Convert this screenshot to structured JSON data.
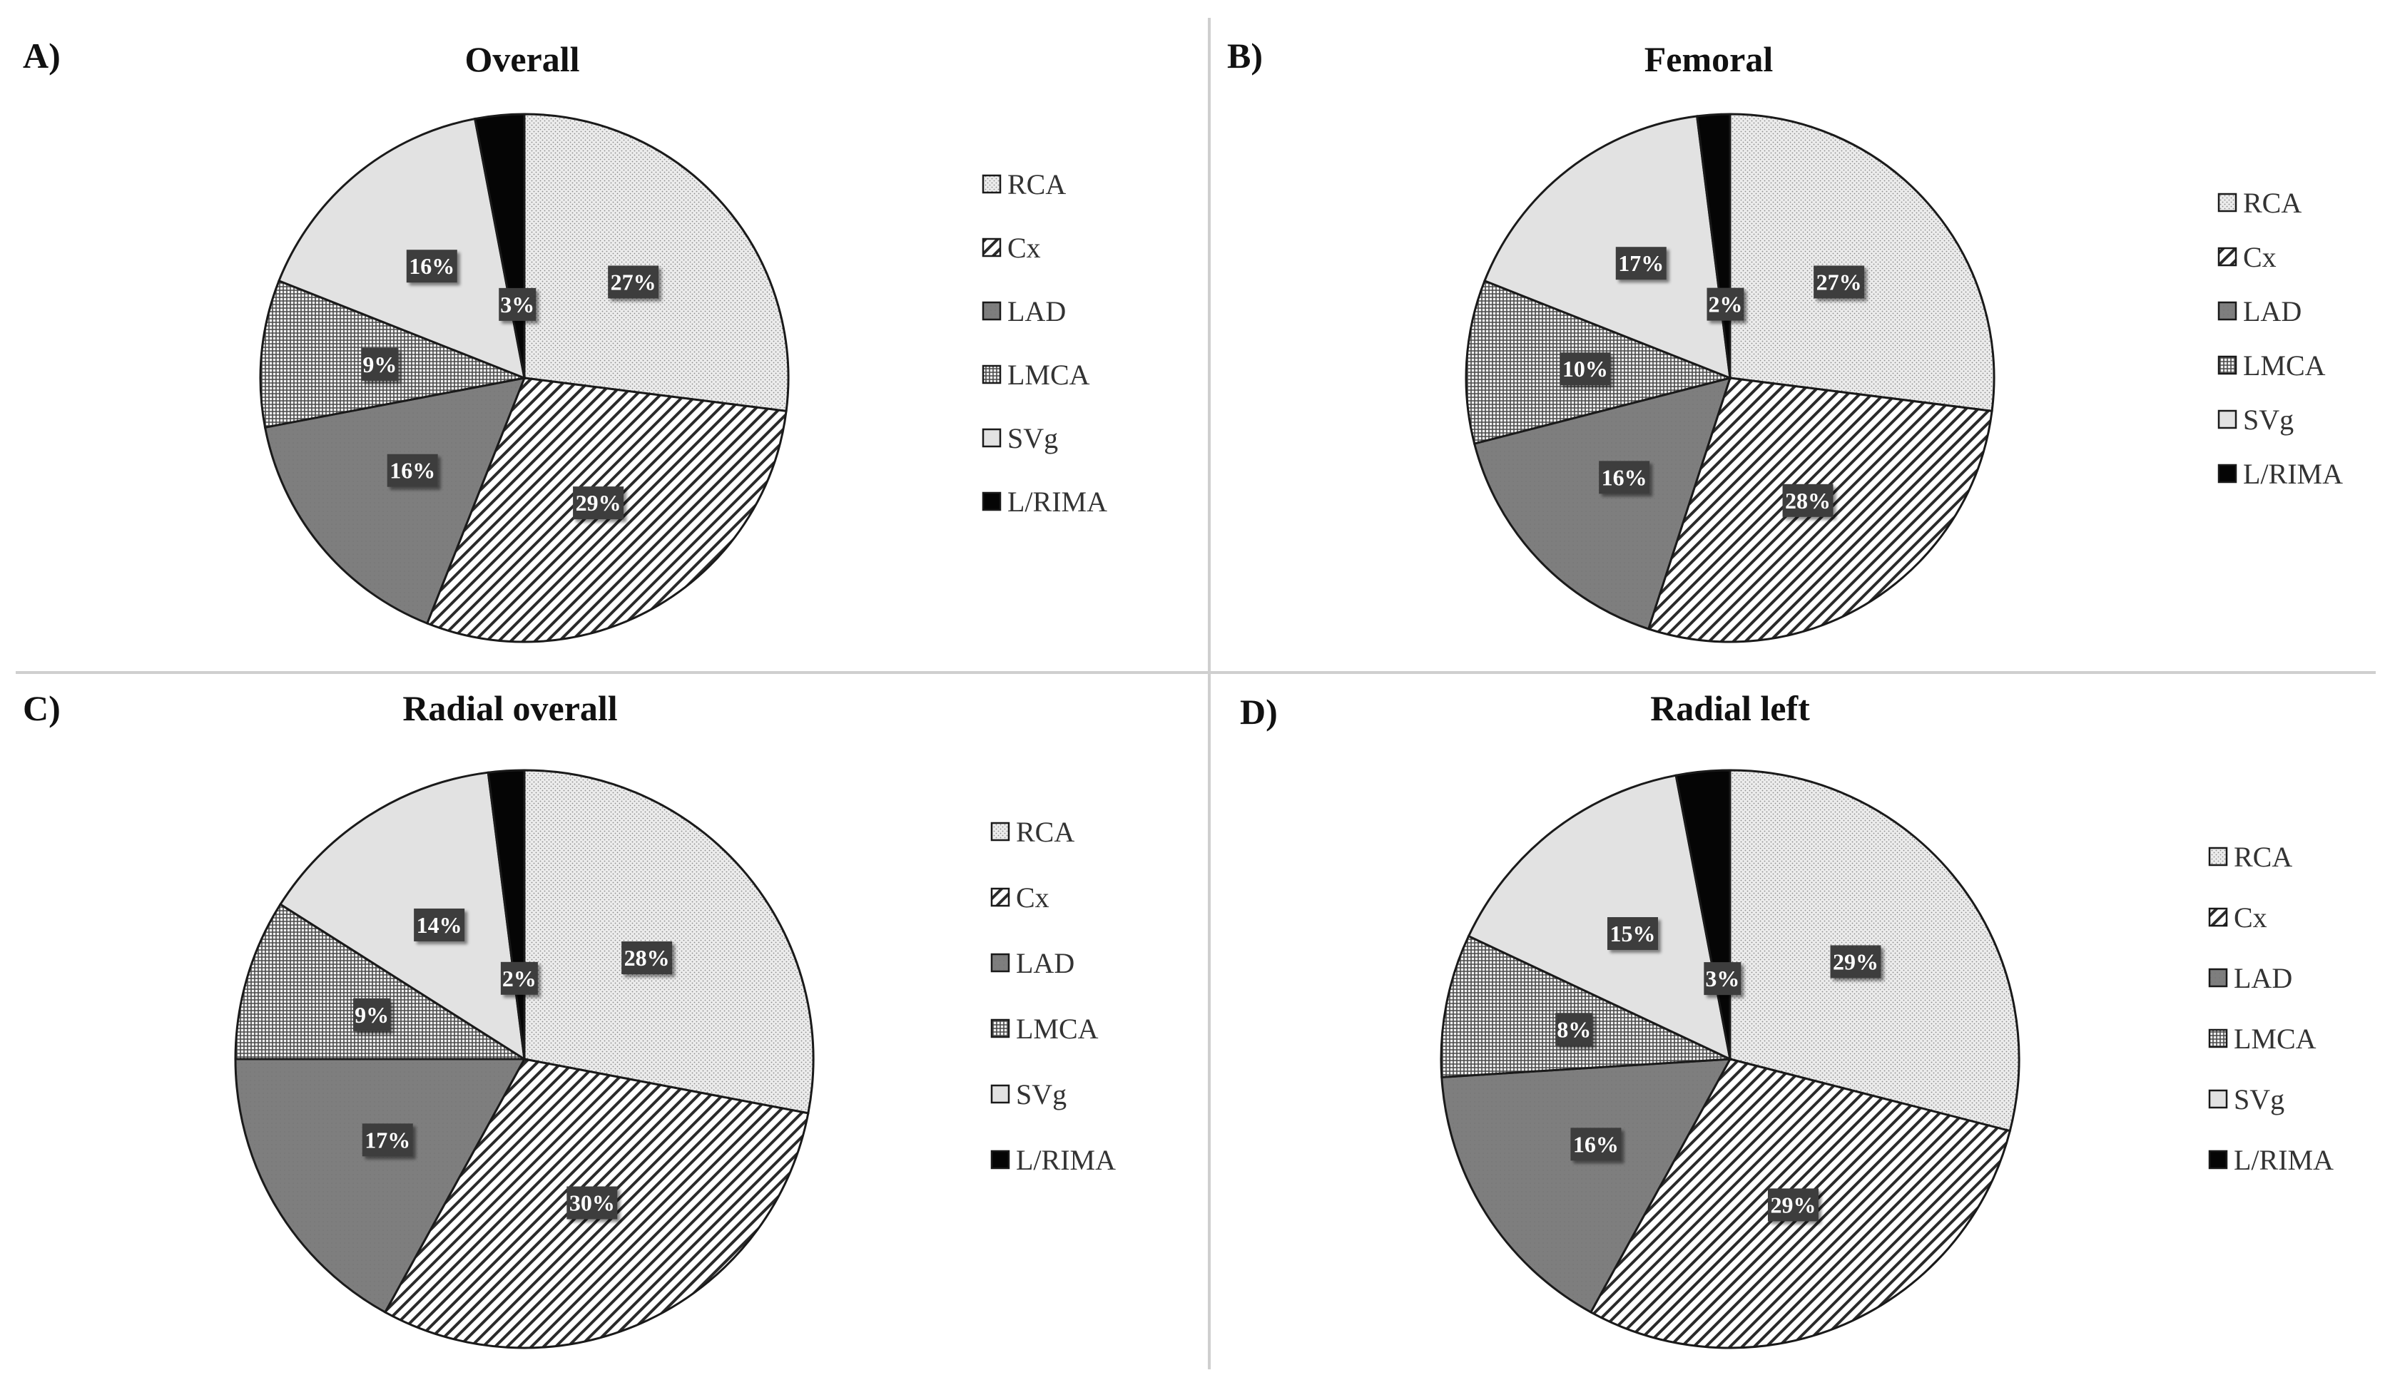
{
  "figure": {
    "legend_labels": [
      "RCA",
      "Cx",
      "LAD",
      "LMCA",
      "SVg",
      "L/RIMA"
    ],
    "slice_fills": [
      "pat-rca",
      "pat-cx",
      "pat-lad",
      "pat-lmca",
      "pat-svg",
      "pat-rima"
    ]
  },
  "chart_data": [
    {
      "type": "pie",
      "panel": "A)",
      "title": "Overall",
      "categories": [
        "RCA",
        "Cx",
        "LAD",
        "LMCA",
        "SVg",
        "L/RIMA"
      ],
      "values": [
        27,
        29,
        16,
        9,
        16,
        3
      ],
      "labels": [
        "27%",
        "29%",
        "16%",
        "9%",
        "16%",
        "3%"
      ]
    },
    {
      "type": "pie",
      "panel": "B)",
      "title": "Femoral",
      "categories": [
        "RCA",
        "Cx",
        "LAD",
        "LMCA",
        "SVg",
        "L/RIMA"
      ],
      "values": [
        27,
        28,
        16,
        10,
        17,
        2
      ],
      "labels": [
        "27%",
        "28%",
        "16%",
        "10%",
        "17%",
        "2%"
      ]
    },
    {
      "type": "pie",
      "panel": "C)",
      "title": "Radial overall",
      "categories": [
        "RCA",
        "Cx",
        "LAD",
        "LMCA",
        "SVg",
        "L/RIMA"
      ],
      "values": [
        28,
        30,
        17,
        9,
        14,
        2
      ],
      "labels": [
        "28%",
        "30%",
        "17%",
        "9%",
        "14%",
        "2%"
      ]
    },
    {
      "type": "pie",
      "panel": "D)",
      "title": "Radial left",
      "categories": [
        "RCA",
        "Cx",
        "LAD",
        "LMCA",
        "SVg",
        "L/RIMA"
      ],
      "values": [
        29,
        29,
        16,
        8,
        15,
        3
      ],
      "labels": [
        "29%",
        "29%",
        "16%",
        "8%",
        "15%",
        "3%"
      ]
    }
  ]
}
